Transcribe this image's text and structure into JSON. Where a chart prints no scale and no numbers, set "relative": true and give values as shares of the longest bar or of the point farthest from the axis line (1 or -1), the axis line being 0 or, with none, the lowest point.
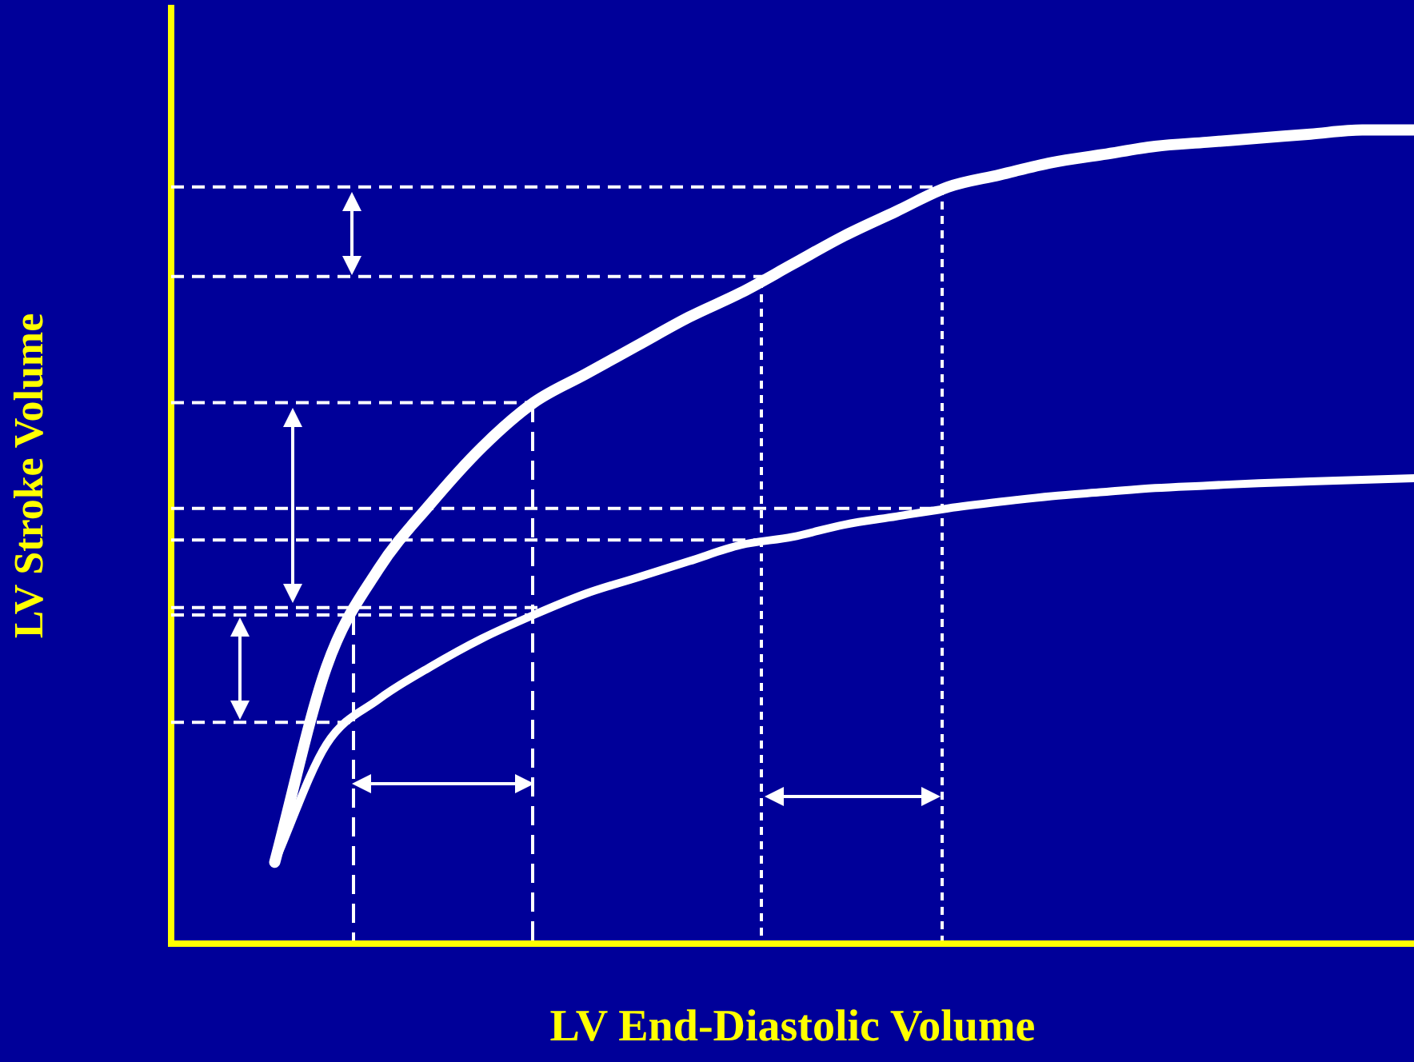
{
  "chart_data": {
    "type": "line",
    "xlabel": "LV End-Diastolic Volume",
    "ylabel": "LV Stroke Volume",
    "relative": true,
    "legend": false,
    "grid": false,
    "marker": "none",
    "line_style": "solid",
    "categories": [
      null,
      null,
      null,
      null,
      null,
      null,
      null,
      null,
      null,
      null,
      null,
      null,
      null,
      null,
      null,
      null,
      null,
      null,
      null,
      null,
      null,
      null,
      null,
      null,
      null
    ],
    "series": [
      {
        "color": "#ffffff",
        "values": [
          null,
          null,
          0.1,
          0.34,
          0.46,
          0.54,
          0.61,
          0.665,
          0.7,
          0.735,
          0.77,
          0.8,
          0.835,
          0.87,
          0.9,
          0.93,
          0.945,
          0.96,
          0.97,
          0.98,
          0.985,
          0.99,
          0.995,
          1.0,
          1.0
        ]
      },
      {
        "color": "#ffffff",
        "values": [
          null,
          null,
          0.1,
          0.245,
          0.3,
          0.34,
          0.375,
          0.404,
          0.43,
          0.45,
          0.47,
          0.49,
          0.5,
          0.515,
          0.525,
          0.535,
          0.543,
          0.55,
          0.555,
          0.56,
          0.563,
          0.566,
          0.568,
          0.57,
          0.572
        ]
      }
    ],
    "ref_lines": [
      {
        "axis": "y",
        "value": 0.93,
        "color": "#ffffff",
        "line_style": "dashed"
      },
      {
        "axis": "y",
        "value": 0.82,
        "color": "#ffffff",
        "line_style": "dashed"
      },
      {
        "axis": "y",
        "value": 0.665,
        "color": "#ffffff",
        "line_style": "dashed"
      },
      {
        "axis": "y",
        "value": 0.535,
        "color": "#ffffff",
        "line_style": "dashed"
      },
      {
        "axis": "y",
        "value": 0.496,
        "color": "#ffffff",
        "line_style": "dashed"
      },
      {
        "axis": "y",
        "value": 0.413,
        "color": "#ffffff",
        "line_style": "dashed"
      },
      {
        "axis": "y",
        "value": 0.404,
        "color": "#ffffff",
        "line_style": "dashed"
      },
      {
        "axis": "y",
        "value": 0.272,
        "color": "#ffffff",
        "line_style": "dashed"
      }
    ]
  }
}
